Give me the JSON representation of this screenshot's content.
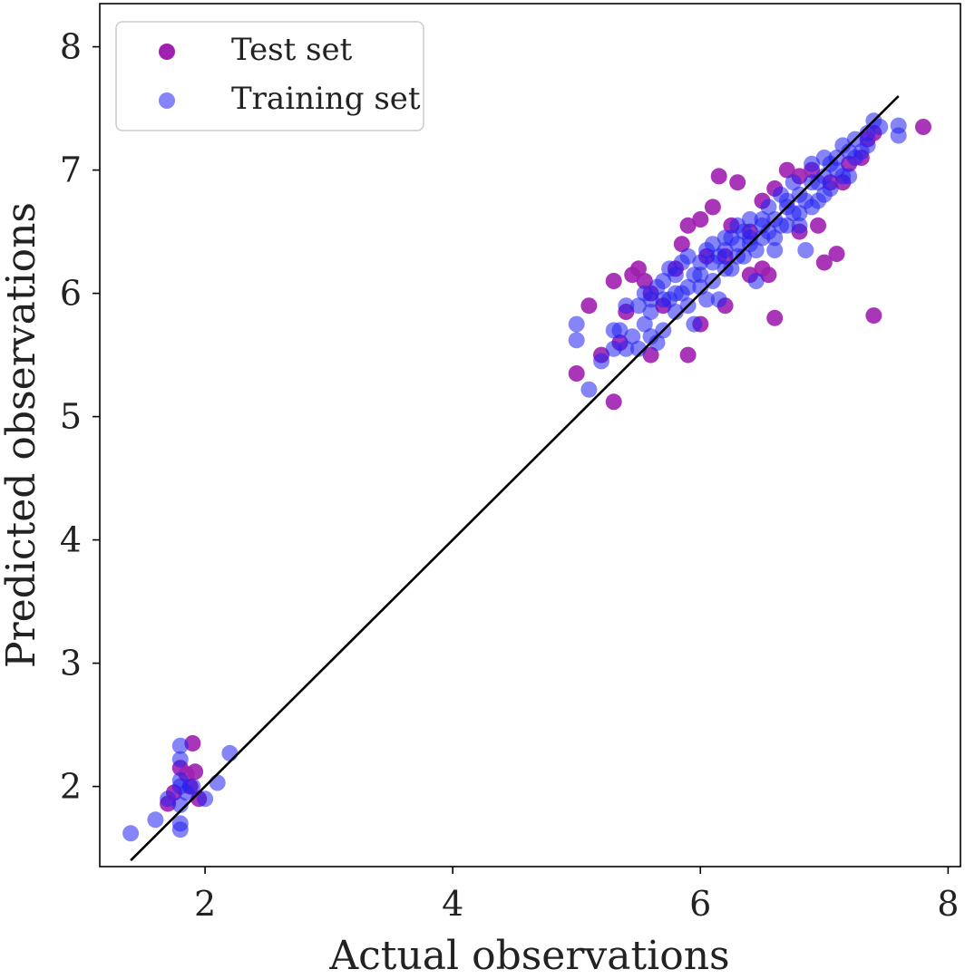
{
  "chart_data": {
    "type": "scatter",
    "title": "",
    "xlabel": "Actual observations",
    "ylabel": "Predicted observations",
    "xlim": [
      1.15,
      8.1
    ],
    "ylim": [
      1.35,
      8.35
    ],
    "xticks": [
      2,
      4,
      6,
      8
    ],
    "yticks": [
      2,
      3,
      4,
      5,
      6,
      7,
      8
    ],
    "xtick_labels": [
      "2",
      "4",
      "6",
      "8"
    ],
    "ytick_labels": [
      "2",
      "3",
      "4",
      "5",
      "6",
      "7",
      "8"
    ],
    "grid": false,
    "legend_position": "upper-left",
    "reference_line": {
      "x": [
        1.4,
        7.6
      ],
      "y": [
        1.4,
        7.6
      ],
      "color": "#000000"
    },
    "series": [
      {
        "name": "Test set",
        "color": "#a020b0",
        "points": [
          [
            1.7,
            1.86
          ],
          [
            1.8,
            2.15
          ],
          [
            1.85,
            2.1
          ],
          [
            1.9,
            2.35
          ],
          [
            1.92,
            2.12
          ],
          [
            1.88,
            2.0
          ],
          [
            1.75,
            1.95
          ],
          [
            1.95,
            1.9
          ],
          [
            5.0,
            5.35
          ],
          [
            5.1,
            5.9
          ],
          [
            5.3,
            5.12
          ],
          [
            5.35,
            5.6
          ],
          [
            5.3,
            6.1
          ],
          [
            5.4,
            5.85
          ],
          [
            5.45,
            6.15
          ],
          [
            5.5,
            6.2
          ],
          [
            5.6,
            5.5
          ],
          [
            5.7,
            5.9
          ],
          [
            5.8,
            6.2
          ],
          [
            5.9,
            5.5
          ],
          [
            5.9,
            6.55
          ],
          [
            6.0,
            6.6
          ],
          [
            6.05,
            6.3
          ],
          [
            6.1,
            6.7
          ],
          [
            6.2,
            6.3
          ],
          [
            6.2,
            5.9
          ],
          [
            6.3,
            6.9
          ],
          [
            6.4,
            6.5
          ],
          [
            6.5,
            6.75
          ],
          [
            6.55,
            6.15
          ],
          [
            6.6,
            5.8
          ],
          [
            6.6,
            6.85
          ],
          [
            6.7,
            7.0
          ],
          [
            6.8,
            6.5
          ],
          [
            6.9,
            7.0
          ],
          [
            7.0,
            6.25
          ],
          [
            7.1,
            6.32
          ],
          [
            7.15,
            6.9
          ],
          [
            7.3,
            7.1
          ],
          [
            7.4,
            7.3
          ],
          [
            7.4,
            5.82
          ],
          [
            7.8,
            7.35
          ],
          [
            5.2,
            5.5
          ],
          [
            5.6,
            6.0
          ],
          [
            6.0,
            5.75
          ],
          [
            6.15,
            6.95
          ],
          [
            6.5,
            6.2
          ],
          [
            6.8,
            6.95
          ],
          [
            7.05,
            6.9
          ],
          [
            7.2,
            7.05
          ],
          [
            5.55,
            6.1
          ],
          [
            5.85,
            6.4
          ],
          [
            6.25,
            6.55
          ],
          [
            6.4,
            6.15
          ],
          [
            6.95,
            6.55
          ],
          [
            7.35,
            7.25
          ]
        ]
      },
      {
        "name": "Training set",
        "color": "#2020f0",
        "points": [
          [
            1.4,
            1.62
          ],
          [
            1.6,
            1.73
          ],
          [
            1.7,
            1.9
          ],
          [
            1.8,
            1.65
          ],
          [
            1.8,
            1.7
          ],
          [
            1.8,
            1.85
          ],
          [
            1.8,
            2.0
          ],
          [
            1.8,
            2.05
          ],
          [
            1.8,
            2.22
          ],
          [
            1.8,
            2.33
          ],
          [
            1.85,
            1.95
          ],
          [
            1.9,
            2.0
          ],
          [
            2.0,
            1.9
          ],
          [
            2.1,
            2.03
          ],
          [
            2.2,
            2.27
          ],
          [
            5.0,
            5.75
          ],
          [
            5.0,
            5.62
          ],
          [
            5.1,
            5.22
          ],
          [
            5.2,
            5.45
          ],
          [
            5.3,
            5.55
          ],
          [
            5.35,
            5.7
          ],
          [
            5.4,
            5.9
          ],
          [
            5.5,
            5.55
          ],
          [
            5.55,
            5.75
          ],
          [
            5.6,
            5.95
          ],
          [
            5.65,
            6.05
          ],
          [
            5.7,
            5.7
          ],
          [
            5.75,
            6.2
          ],
          [
            5.8,
            5.85
          ],
          [
            5.85,
            6.0
          ],
          [
            5.9,
            6.3
          ],
          [
            5.95,
            5.75
          ],
          [
            6.0,
            6.05
          ],
          [
            6.05,
            6.35
          ],
          [
            6.1,
            6.1
          ],
          [
            6.15,
            5.95
          ],
          [
            6.2,
            6.45
          ],
          [
            6.25,
            6.2
          ],
          [
            6.3,
            6.55
          ],
          [
            6.35,
            6.3
          ],
          [
            6.4,
            6.6
          ],
          [
            6.45,
            6.1
          ],
          [
            6.5,
            6.45
          ],
          [
            6.55,
            6.7
          ],
          [
            6.6,
            6.35
          ],
          [
            6.65,
            6.8
          ],
          [
            6.7,
            6.55
          ],
          [
            6.75,
            6.9
          ],
          [
            6.8,
            6.65
          ],
          [
            6.85,
            6.35
          ],
          [
            6.9,
            7.05
          ],
          [
            6.95,
            6.75
          ],
          [
            7.0,
            7.1
          ],
          [
            7.05,
            6.85
          ],
          [
            7.1,
            7.0
          ],
          [
            7.15,
            7.2
          ],
          [
            7.2,
            6.95
          ],
          [
            7.25,
            7.25
          ],
          [
            7.3,
            7.15
          ],
          [
            7.35,
            7.3
          ],
          [
            7.4,
            7.4
          ],
          [
            7.45,
            7.35
          ],
          [
            7.6,
            7.28
          ],
          [
            7.6,
            7.36
          ],
          [
            5.45,
            5.65
          ],
          [
            5.6,
            5.85
          ],
          [
            5.7,
            6.1
          ],
          [
            5.8,
            6.15
          ],
          [
            5.9,
            6.05
          ],
          [
            6.0,
            6.25
          ],
          [
            6.1,
            6.4
          ],
          [
            6.2,
            6.2
          ],
          [
            6.3,
            6.4
          ],
          [
            6.4,
            6.45
          ],
          [
            6.5,
            6.55
          ],
          [
            6.6,
            6.6
          ],
          [
            6.7,
            6.7
          ],
          [
            6.8,
            6.8
          ],
          [
            6.9,
            6.9
          ],
          [
            7.0,
            6.95
          ],
          [
            5.5,
            5.9
          ],
          [
            5.65,
            5.6
          ],
          [
            5.75,
            5.95
          ],
          [
            5.85,
            6.25
          ],
          [
            5.95,
            6.15
          ],
          [
            6.05,
            5.95
          ],
          [
            6.15,
            6.3
          ],
          [
            6.25,
            6.45
          ],
          [
            6.35,
            6.5
          ],
          [
            6.45,
            6.35
          ],
          [
            6.55,
            6.5
          ],
          [
            6.65,
            6.55
          ],
          [
            6.75,
            6.65
          ],
          [
            6.85,
            6.75
          ],
          [
            6.95,
            6.9
          ],
          [
            7.05,
            7.05
          ],
          [
            7.15,
            6.95
          ],
          [
            7.25,
            7.1
          ],
          [
            7.35,
            7.2
          ],
          [
            5.3,
            5.7
          ],
          [
            5.4,
            5.55
          ],
          [
            5.55,
            6.0
          ],
          [
            5.6,
            5.65
          ],
          [
            5.7,
            5.95
          ],
          [
            5.8,
            6.0
          ],
          [
            5.9,
            5.9
          ],
          [
            6.0,
            6.15
          ],
          [
            6.1,
            6.25
          ],
          [
            6.2,
            6.35
          ],
          [
            6.3,
            6.3
          ],
          [
            6.4,
            6.4
          ],
          [
            6.5,
            6.6
          ],
          [
            6.6,
            6.45
          ],
          [
            6.7,
            6.75
          ],
          [
            6.8,
            6.55
          ],
          [
            6.9,
            6.7
          ],
          [
            7.0,
            6.8
          ],
          [
            7.1,
            7.1
          ],
          [
            7.2,
            7.15
          ]
        ]
      }
    ]
  }
}
